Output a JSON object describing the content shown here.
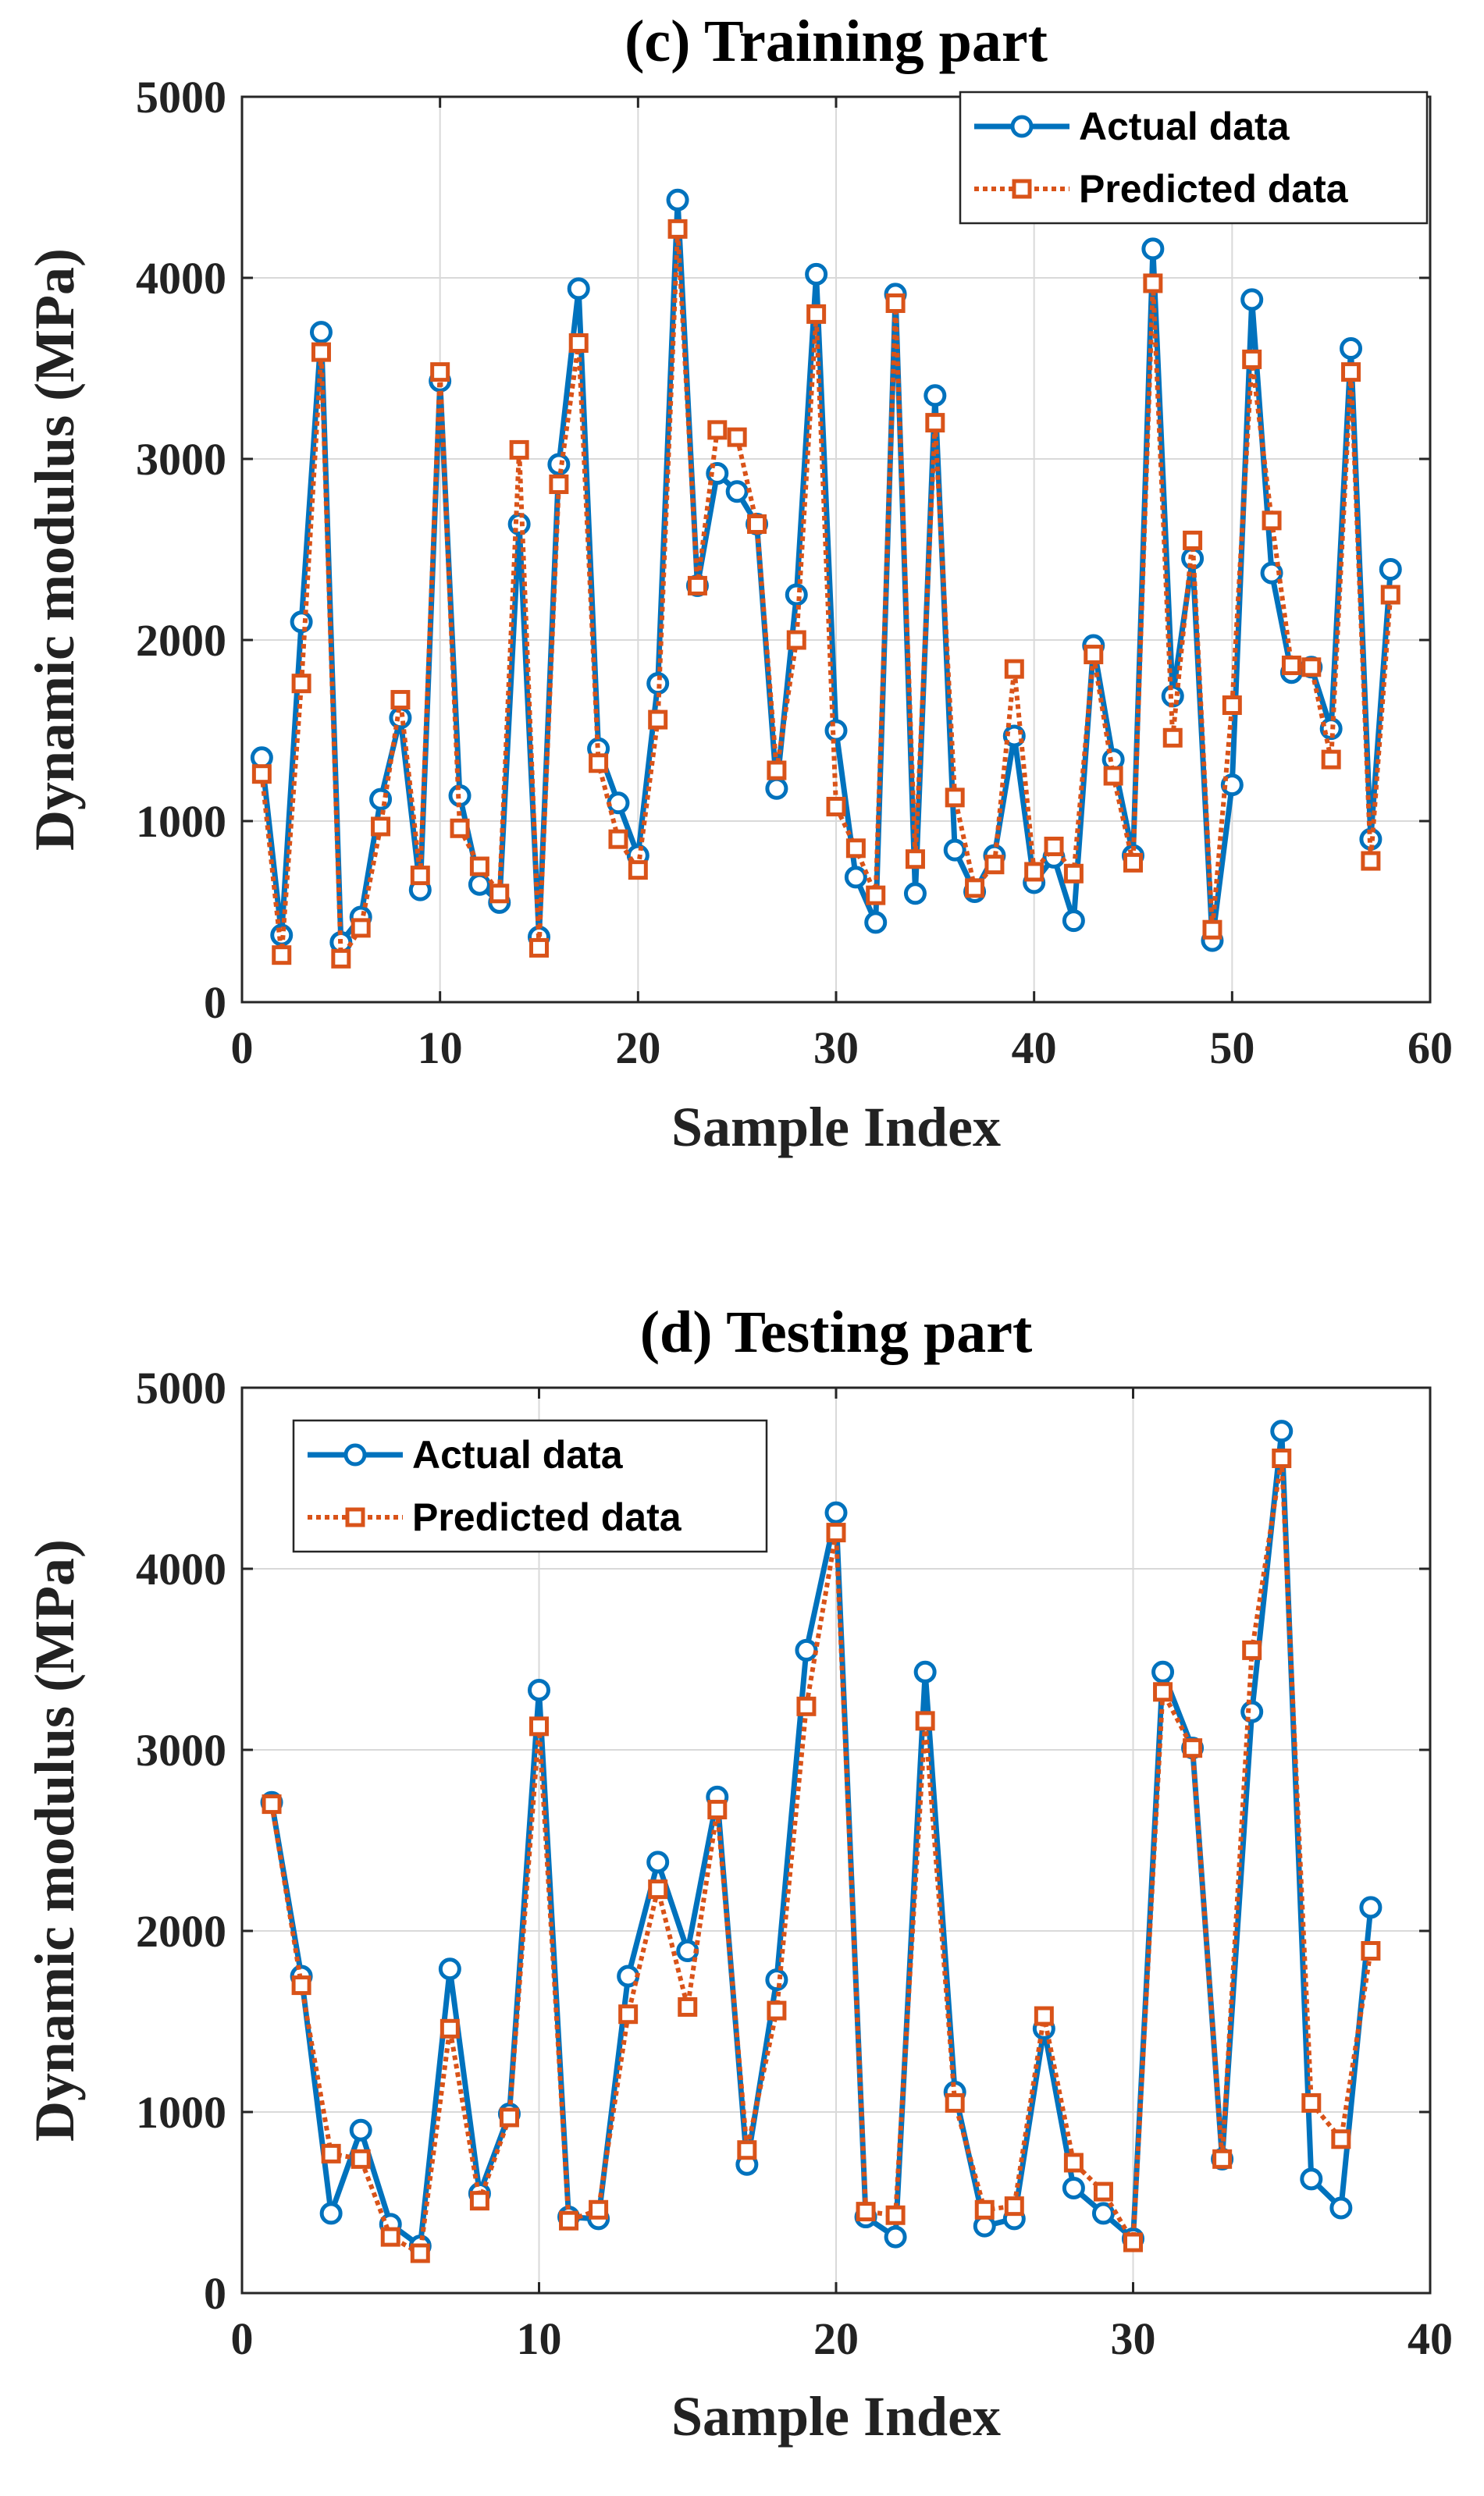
{
  "colors": {
    "actual": "#0072BD",
    "predicted": "#D95319"
  },
  "chart_data": [
    {
      "type": "line",
      "title": "(c) Training part",
      "xlabel": "Sample Index",
      "ylabel": "Dynamic modulus (MPa)",
      "xlim": [
        0,
        60
      ],
      "ylim": [
        0,
        5000
      ],
      "xticks": [
        0,
        10,
        20,
        30,
        40,
        50,
        60
      ],
      "yticks": [
        0,
        1000,
        2000,
        3000,
        4000,
        5000
      ],
      "legend_position": "top-right",
      "grid": true,
      "x": [
        1,
        2,
        3,
        4,
        5,
        6,
        7,
        8,
        9,
        10,
        11,
        12,
        13,
        14,
        15,
        16,
        17,
        18,
        19,
        20,
        21,
        22,
        23,
        24,
        25,
        26,
        27,
        28,
        29,
        30,
        31,
        32,
        33,
        34,
        35,
        36,
        37,
        38,
        39,
        40,
        41,
        42,
        43,
        44,
        45,
        46,
        47,
        48,
        49,
        50,
        51,
        52,
        53,
        54,
        55,
        56,
        57,
        58
      ],
      "series": [
        {
          "name": "Actual data",
          "values": [
            1350,
            370,
            2100,
            3700,
            330,
            470,
            1120,
            1570,
            620,
            3430,
            1140,
            650,
            550,
            2640,
            360,
            2970,
            3940,
            1400,
            1100,
            810,
            1760,
            4430,
            2300,
            2920,
            2820,
            2640,
            1180,
            2250,
            4020,
            1500,
            690,
            440,
            3910,
            600,
            3350,
            840,
            610,
            810,
            1470,
            660,
            800,
            450,
            1970,
            1340,
            810,
            4160,
            1690,
            2450,
            340,
            1200,
            3880,
            2370,
            1820,
            1850,
            1510,
            3610,
            900,
            2390
          ]
        },
        {
          "name": "Predicted data",
          "values": [
            1260,
            260,
            1760,
            3590,
            240,
            410,
            970,
            1670,
            700,
            3480,
            960,
            750,
            600,
            3050,
            300,
            2860,
            3640,
            1320,
            900,
            730,
            1560,
            4270,
            2300,
            3160,
            3120,
            2640,
            1280,
            2000,
            3800,
            1080,
            850,
            590,
            3860,
            790,
            3200,
            1130,
            630,
            760,
            1840,
            720,
            860,
            710,
            1920,
            1250,
            770,
            3970,
            1460,
            2550,
            400,
            1640,
            3550,
            2660,
            1860,
            1850,
            1340,
            3480,
            780,
            2250
          ]
        }
      ]
    },
    {
      "type": "line",
      "title": "(d) Testing part",
      "xlabel": "Sample Index",
      "ylabel": "Dynamic modulus (MPa)",
      "xlim": [
        0,
        40
      ],
      "ylim": [
        0,
        5000
      ],
      "xticks": [
        0,
        10,
        20,
        30,
        40
      ],
      "yticks": [
        0,
        1000,
        2000,
        3000,
        4000,
        5000
      ],
      "legend_position": "top-left",
      "grid": true,
      "x": [
        1,
        2,
        3,
        4,
        5,
        6,
        7,
        8,
        9,
        10,
        11,
        12,
        13,
        14,
        15,
        16,
        17,
        18,
        19,
        20,
        21,
        22,
        23,
        24,
        25,
        26,
        27,
        28,
        29,
        30,
        31,
        32,
        33,
        34,
        35,
        36,
        37,
        38
      ],
      "series": [
        {
          "name": "Actual data",
          "values": [
            2710,
            1750,
            440,
            900,
            380,
            260,
            1790,
            550,
            990,
            3330,
            420,
            410,
            1750,
            2380,
            1890,
            2740,
            710,
            1730,
            3550,
            4310,
            420,
            310,
            3430,
            1110,
            370,
            410,
            1460,
            580,
            440,
            300,
            3430,
            3010,
            740,
            3210,
            4760,
            630,
            470,
            2130
          ]
        },
        {
          "name": "Predicted data",
          "values": [
            2700,
            1700,
            770,
            740,
            310,
            220,
            1460,
            510,
            970,
            3130,
            400,
            460,
            1540,
            2230,
            1580,
            2670,
            790,
            1560,
            3240,
            4200,
            450,
            430,
            3160,
            1050,
            460,
            480,
            1530,
            720,
            560,
            280,
            3320,
            3010,
            740,
            3550,
            4610,
            1050,
            850,
            1890
          ]
        }
      ]
    }
  ]
}
